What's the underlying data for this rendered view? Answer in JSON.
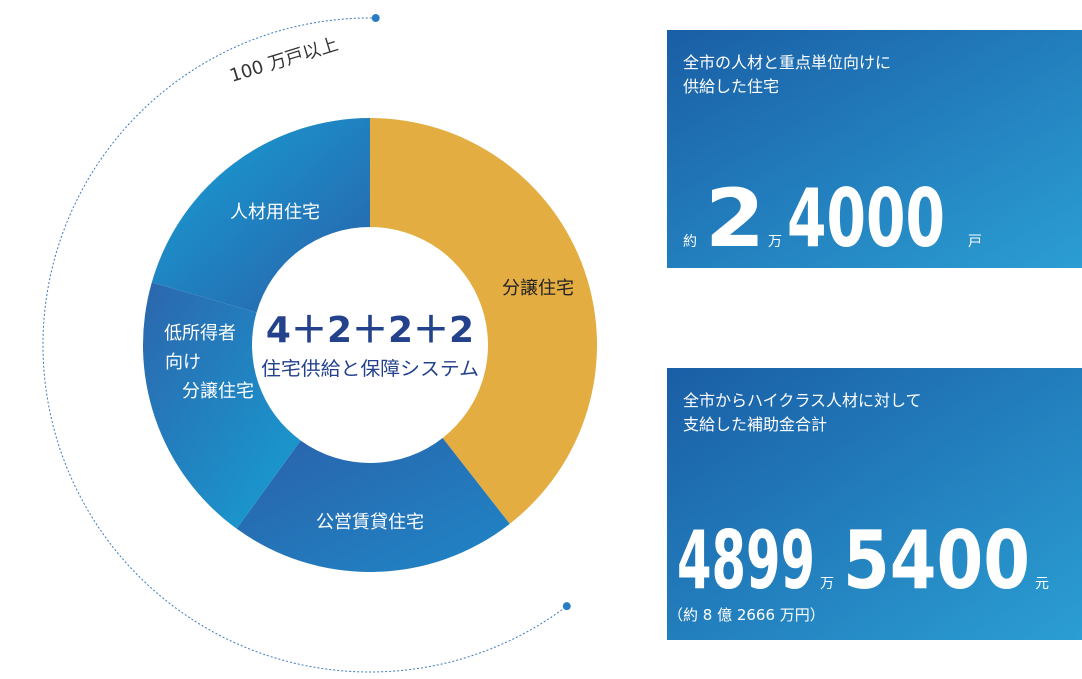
{
  "annotation": "100 万戸以上",
  "donut": {
    "center_title": "4＋2＋2＋2",
    "center_subtitle": "住宅供給と保障システム",
    "segments": [
      {
        "label_lines": [
          "分譲住宅"
        ]
      },
      {
        "label_lines": [
          "公営賃貸住宅"
        ]
      },
      {
        "label_lines": [
          "低所得者",
          "向け",
          "分譲住宅"
        ]
      },
      {
        "label_lines": [
          "人材用住宅"
        ]
      }
    ]
  },
  "cards": [
    {
      "title_lines": [
        "全市の人材と重点単位向けに",
        "供給した住宅"
      ],
      "parts": [
        "約",
        2,
        "万",
        4000,
        "戸"
      ]
    },
    {
      "title_lines": [
        "全市からハイクラス人材に対して",
        "支給した補助金合計"
      ],
      "parts": [
        4899,
        "万",
        5400,
        "元"
      ],
      "note": "（約 8 億 2666 万円）"
    }
  ]
}
